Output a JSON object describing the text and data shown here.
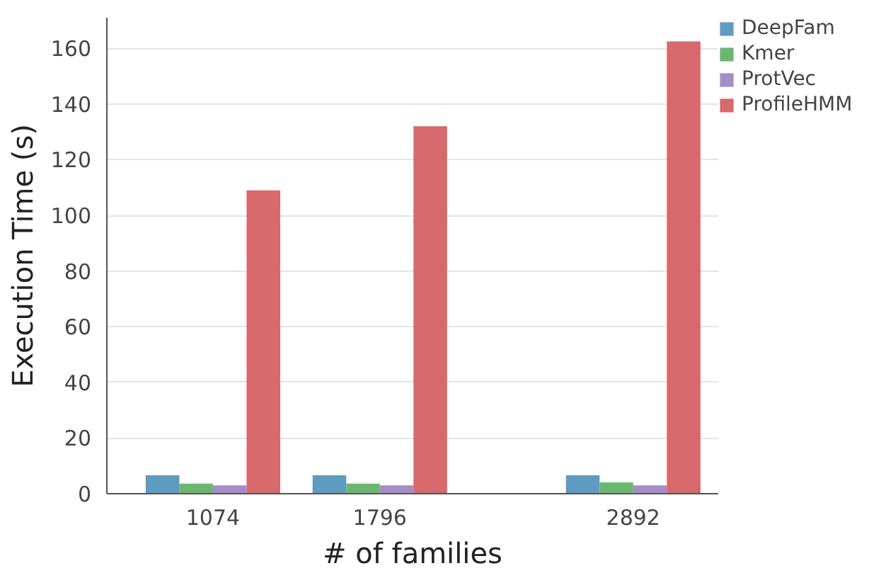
{
  "chart_data": {
    "type": "bar",
    "xlabel": "# of families",
    "ylabel": "Execution Time (s)",
    "x": [
      1074,
      1796,
      2892
    ],
    "xlim": [
      615,
      3260
    ],
    "xticks": [
      1074,
      1796,
      2892
    ],
    "ylim": [
      0,
      171
    ],
    "yticks": [
      0,
      20,
      40,
      60,
      80,
      100,
      120,
      140,
      160
    ],
    "grid": "y",
    "legend": "top right",
    "series": [
      {
        "name": "DeepFam",
        "color": "#5f9ac0",
        "values": [
          6.6,
          6.6,
          6.6
        ]
      },
      {
        "name": "Kmer",
        "color": "#6ab870",
        "values": [
          3.6,
          3.6,
          4.1
        ]
      },
      {
        "name": "ProtVec",
        "color": "#a58dc6",
        "values": [
          3.0,
          3.0,
          3.0
        ]
      },
      {
        "name": "ProfileHMM",
        "color": "#d7686c",
        "values": [
          109,
          132,
          162.5
        ]
      }
    ]
  }
}
